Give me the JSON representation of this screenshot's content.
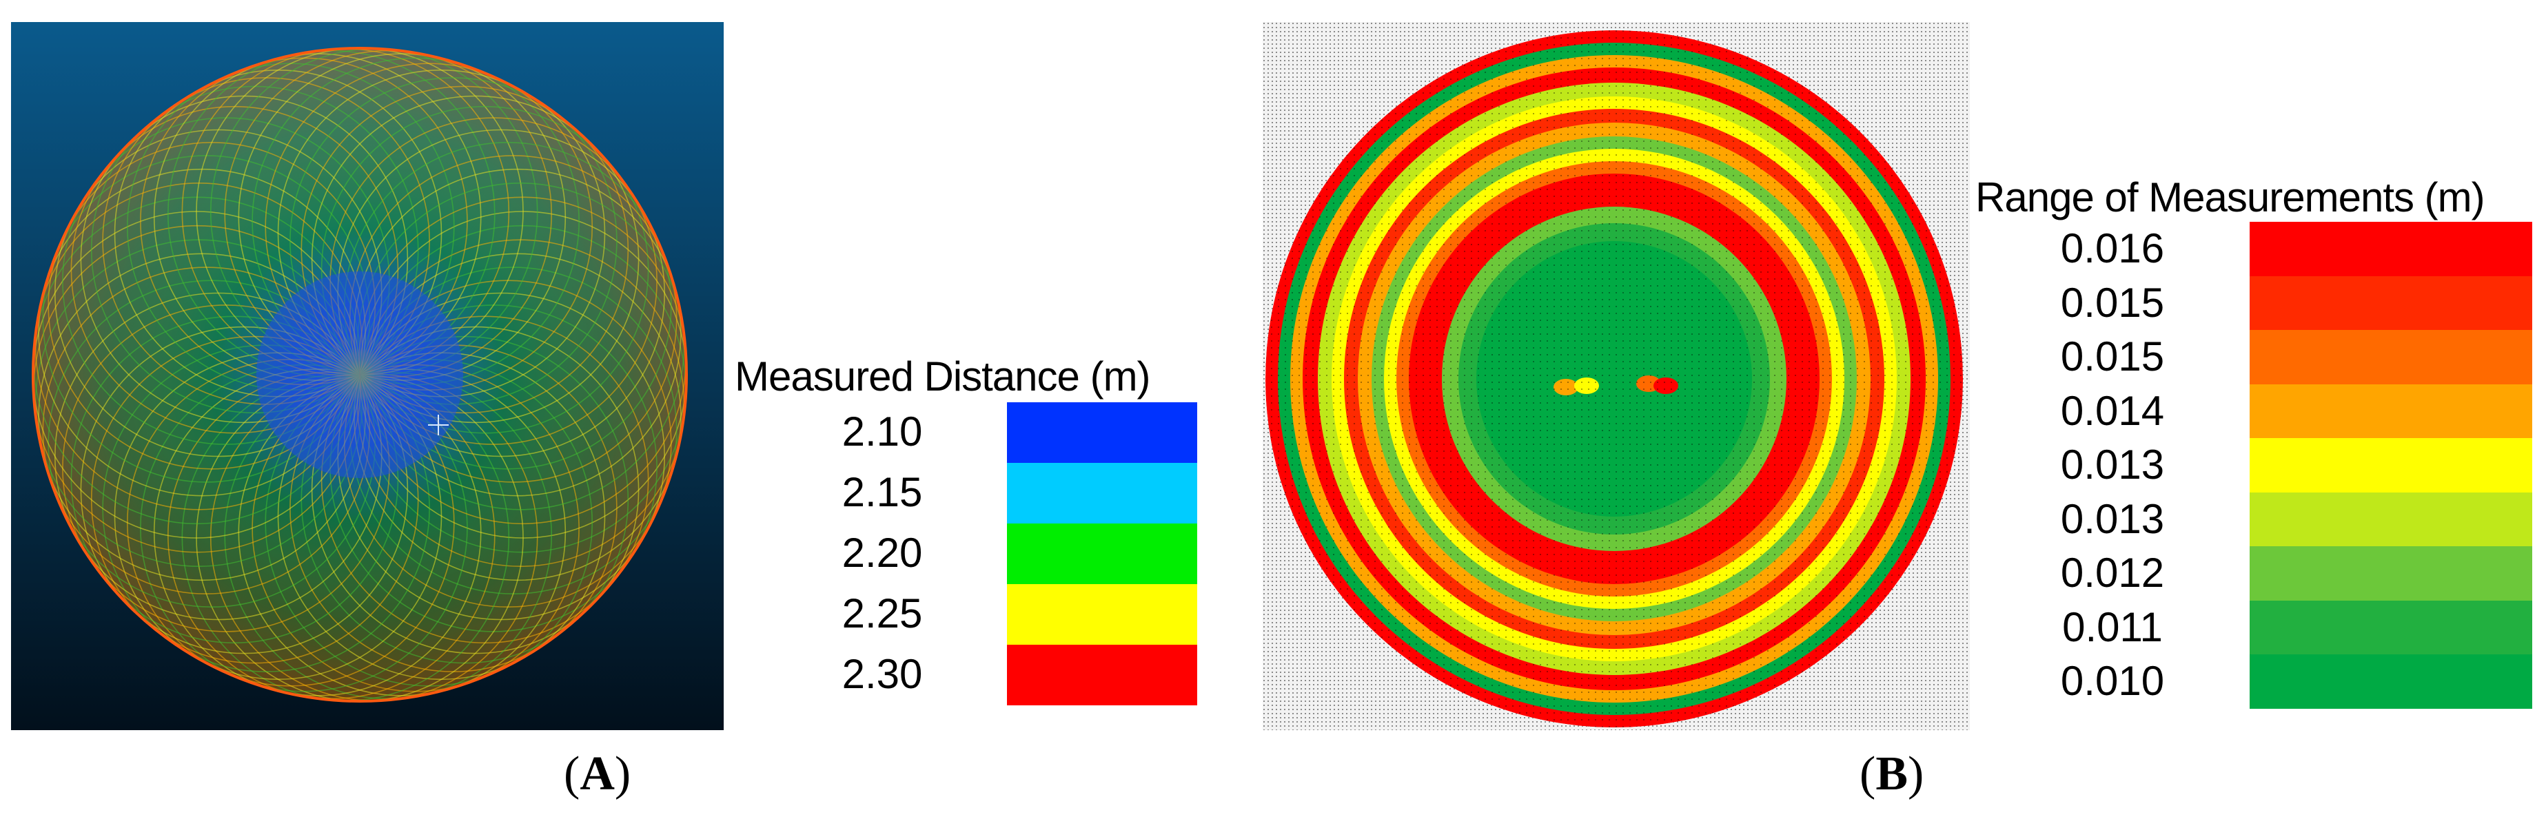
{
  "panel_a": {
    "caption_open": "(",
    "caption_letter": "A",
    "caption_close": ")",
    "legend_title": "Measured Distance (m)",
    "legend": [
      {
        "label": "2.10",
        "color": "#0033ff"
      },
      {
        "label": "2.15",
        "color": "#00ccff"
      },
      {
        "label": "2.20",
        "color": "#00ee00"
      },
      {
        "label": "2.25",
        "color": "#ffff00"
      },
      {
        "label": "2.30",
        "color": "#ff0000"
      }
    ],
    "background_top": "#0a5a8c",
    "background_bottom": "#02101c"
  },
  "panel_b": {
    "caption_open": "(",
    "caption_letter": "B",
    "caption_close": ")",
    "legend_title": "Range of Measurements (m)",
    "legend": [
      {
        "label": "0.016",
        "color": "#ff0000"
      },
      {
        "label": "0.015",
        "color": "#ff2a00"
      },
      {
        "label": "0.015",
        "color": "#ff6a00"
      },
      {
        "label": "0.014",
        "color": "#ffa500"
      },
      {
        "label": "0.013",
        "color": "#ffff00"
      },
      {
        "label": "0.013",
        "color": "#bfe81a"
      },
      {
        "label": "0.012",
        "color": "#6cc83a"
      },
      {
        "label": "0.011",
        "color": "#22b040"
      },
      {
        "label": "0.010",
        "color": "#00aa44"
      }
    ]
  }
}
